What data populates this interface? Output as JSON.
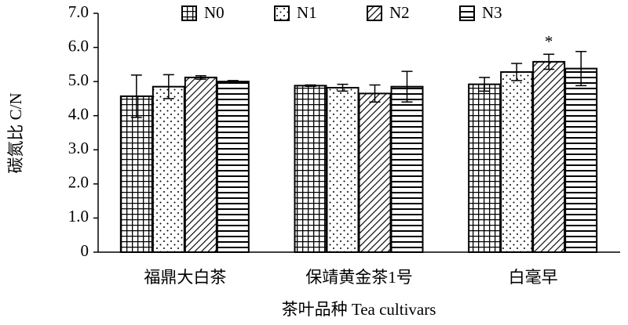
{
  "chart_data": {
    "type": "bar",
    "ylabel": "碳氮比 C/N",
    "xlabel": "茶叶品种 Tea cultivars",
    "categories": [
      "福鼎大白茶",
      "保靖黄金茶1号",
      "白毫早"
    ],
    "series": [
      {
        "name": "N0",
        "color": "#000000",
        "pattern": "grid",
        "values": [
          4.57,
          4.88,
          4.92
        ],
        "errors": [
          0.62,
          0.02,
          0.2
        ]
      },
      {
        "name": "N1",
        "color": "#000000",
        "pattern": "dots",
        "values": [
          4.85,
          4.82,
          5.28
        ],
        "errors": [
          0.35,
          0.1,
          0.25
        ]
      },
      {
        "name": "N2",
        "color": "#000000",
        "pattern": "diagonal",
        "values": [
          5.12,
          4.65,
          5.58
        ],
        "errors": [
          0.05,
          0.25,
          0.22
        ],
        "annotations": [
          null,
          null,
          "*"
        ]
      },
      {
        "name": "N3",
        "color": "#000000",
        "pattern": "horizontal",
        "values": [
          5.0,
          4.85,
          5.38
        ],
        "errors": [
          0.03,
          0.45,
          0.5
        ]
      }
    ],
    "ylim": [
      0,
      7
    ],
    "yticks": [
      0,
      {
        "value": 1,
        "label": "1.0"
      },
      {
        "value": 2,
        "label": "2.0"
      },
      {
        "value": 3,
        "label": "3.0"
      },
      {
        "value": 4,
        "label": "4.0"
      },
      {
        "value": 5,
        "label": "5.0"
      },
      {
        "value": 6,
        "label": "6.0"
      },
      {
        "value": 7,
        "label": "7.0"
      }
    ],
    "grid": false,
    "legend": "top"
  }
}
